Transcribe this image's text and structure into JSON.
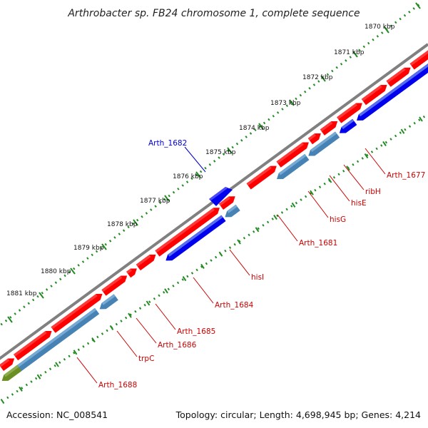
{
  "title": "Arthrobacter sp. FB24 chromosome 1, complete sequence",
  "footer": {
    "accession": "Accession: NC_008541",
    "stats": "Topology: circular; Length: 4,698,945 bp; Genes: 4,214"
  },
  "ticks": [
    "1870 kbp",
    "1871 kbp",
    "1872 kbp",
    "1873 kbp",
    "1874 kbp",
    "1875 kbp",
    "1876 kbp",
    "1877 kbp",
    "1878 kbp",
    "1879 kbp",
    "1880 kbp",
    "1881 kbp"
  ],
  "colors": {
    "backbone": "#808080",
    "gene_forward": "#ff0000",
    "gene_reverse": "#0000ee",
    "gene_reverse_light": "#4682b4",
    "gene_other": "#6b8e23",
    "tick_green": "#228b22",
    "label_red": "#cc0000",
    "label_blue": "#0000cc"
  },
  "gene_labels": [
    {
      "name": "Arth_1682",
      "color": "blue"
    },
    {
      "name": "Arth_1677",
      "color": "red"
    },
    {
      "name": "ribH",
      "color": "red"
    },
    {
      "name": "hisE",
      "color": "red"
    },
    {
      "name": "hisG",
      "color": "red"
    },
    {
      "name": "Arth_1681",
      "color": "red"
    },
    {
      "name": "hisI",
      "color": "red"
    },
    {
      "name": "Arth_1684",
      "color": "red"
    },
    {
      "name": "Arth_1685",
      "color": "red"
    },
    {
      "name": "Arth_1686",
      "color": "red"
    },
    {
      "name": "trpC",
      "color": "red"
    },
    {
      "name": "Arth_1688",
      "color": "red"
    }
  ]
}
